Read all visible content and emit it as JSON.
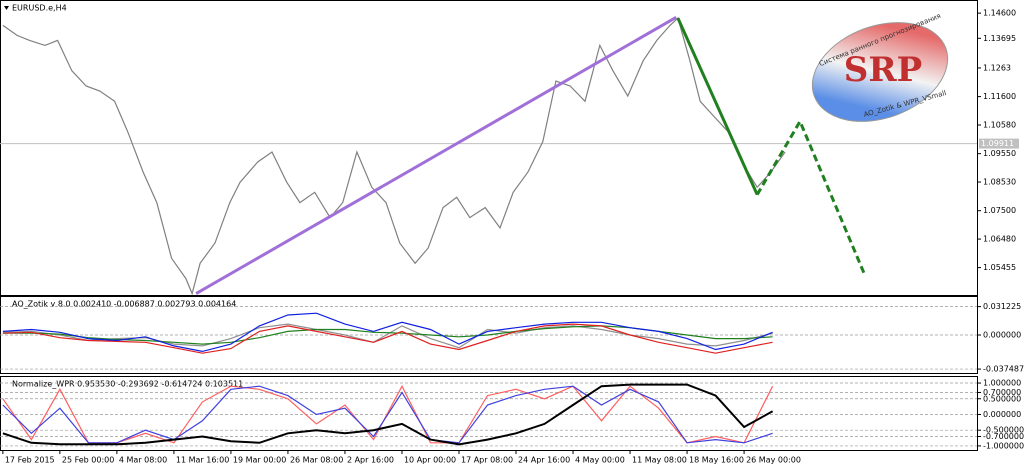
{
  "chart_data": [
    {
      "type": "line",
      "title": "EURUSD.e,H4",
      "xlim": [
        -0.05,
        17.05
      ],
      "ylim": [
        1.0447,
        1.15
      ],
      "yticks": [
        {
          "value": 1.146,
          "label": "1.14600"
        },
        1.13695,
        1.1263,
        {
          "value": 1.116,
          "label": "1.11600"
        },
        {
          "value": 1.1058,
          "label": "1.10580"
        },
        {
          "value": 1.0955,
          "label": "1.09550"
        },
        {
          "value": 1.0853,
          "label": "1.08530"
        },
        {
          "value": 1.075,
          "label": "1.07500"
        },
        {
          "value": 1.0648,
          "label": "1.06480"
        },
        1.05455
      ],
      "hline": 1.09911,
      "x": [
        0,
        0.25,
        0.47,
        0.74,
        0.96,
        1.21,
        1.46,
        1.7,
        1.96,
        2.19,
        2.46,
        2.7,
        2.96,
        3.21,
        3.32,
        3.46,
        3.72,
        3.98,
        4.16,
        4.47,
        4.72,
        4.98,
        5.21,
        5.47,
        5.74,
        5.96,
        6.21,
        6.47,
        6.72,
        6.96,
        7.23,
        7.46,
        7.72,
        7.96,
        8.19,
        8.46,
        8.72,
        8.95,
        9.21,
        9.47,
        9.7,
        9.95,
        10.21,
        10.47,
        10.7,
        10.96,
        11.23,
        11.47,
        11.7,
        11.84,
        12.05,
        12.23,
        12.47,
        12.72,
        12.96,
        13.23,
        13.47,
        13.72
      ],
      "series": [
        {
          "color": "#808080",
          "values": [
            1.1416,
            1.138,
            1.1362,
            1.1344,
            1.1362,
            1.1253,
            1.1198,
            1.118,
            1.1143,
            1.1034,
            1.0889,
            1.0779,
            1.0579,
            1.0506,
            1.0452,
            1.0561,
            1.0634,
            1.0779,
            1.0852,
            1.0925,
            1.0961,
            1.0852,
            1.0779,
            1.0816,
            1.0725,
            1.0779,
            1.0961,
            1.0834,
            1.0779,
            1.0634,
            1.0561,
            1.0616,
            1.0761,
            1.0798,
            1.0725,
            1.0761,
            1.0688,
            1.0816,
            1.0889,
            1.0998,
            1.1216,
            1.1198,
            1.1143,
            1.1344,
            1.1253,
            1.1162,
            1.1289,
            1.1362,
            1.1416,
            1.1442,
            1.1289,
            1.1143,
            1.1089,
            1.1034,
            1.0925,
            1.0834,
            1.0889,
            1.0961
          ]
        }
      ],
      "annotations": [
        {
          "color": "#a070d8",
          "x": [
            3.39,
            11.81
          ],
          "y": [
            1.0452,
            1.1445
          ]
        },
        {
          "color": "#208020",
          "x": [
            11.84,
            13.23
          ],
          "y": [
            1.1442,
            1.0808
          ]
        },
        {
          "color": "#208020",
          "dash": true,
          "x": [
            13.23,
            13.98,
            15.12
          ],
          "y": [
            1.0808,
            1.1071,
            1.0517
          ]
        }
      ]
    },
    {
      "type": "line",
      "title": "AO_Zotik v 8.0 0.002410 -0.006887 0.002793 0.004164",
      "xlim": [
        -0.05,
        17.05
      ],
      "ylim": [
        -0.0418,
        0.0407
      ],
      "grid": true,
      "yticks": [
        0.031225,
        {
          "value": 0,
          "label": "0.000000"
        },
        -0.037487
      ],
      "x": [
        0,
        0.5,
        1,
        1.5,
        2,
        2.5,
        3,
        3.5,
        4,
        4.5,
        5,
        5.5,
        6,
        6.5,
        7,
        7.5,
        8,
        8.5,
        9,
        9.5,
        10,
        10.5,
        11,
        11.5,
        12,
        12.5,
        13,
        13.5
      ],
      "series": [
        {
          "color": "#909090",
          "values": [
            0.003,
            0.004,
            0,
            -0.006,
            -0.004,
            -0.003,
            -0.01,
            -0.012,
            -0.004,
            0.008,
            0.012,
            0.006,
            0,
            -0.008,
            0.01,
            -0.004,
            -0.014,
            0.006,
            0.002,
            0.008,
            0.01,
            0.006,
            0,
            -0.004,
            -0.01,
            -0.012,
            -0.006,
            0.002
          ]
        },
        {
          "color": "#208020",
          "values": [
            0.002,
            0.002,
            0.001,
            -0.003,
            -0.005,
            -0.006,
            -0.008,
            -0.01,
            -0.008,
            -0.003,
            0.004,
            0.006,
            0.006,
            0.003,
            0.002,
            0,
            -0.002,
            0,
            0.004,
            0.007,
            0.009,
            0.01,
            0.008,
            0.004,
            0,
            -0.004,
            -0.004,
            -0.002
          ]
        },
        {
          "color": "#e02020",
          "values": [
            0.002,
            0.003,
            -0.003,
            -0.006,
            -0.007,
            -0.008,
            -0.014,
            -0.02,
            -0.015,
            0.004,
            0.01,
            0.004,
            -0.002,
            -0.008,
            0.004,
            -0.01,
            -0.016,
            -0.006,
            0.004,
            0.01,
            0.012,
            0.01,
            0,
            -0.008,
            -0.014,
            -0.02,
            -0.014,
            -0.008
          ]
        },
        {
          "color": "#1020e0",
          "values": [
            0.004,
            0.006,
            0.003,
            -0.004,
            -0.006,
            -0.002,
            -0.012,
            -0.018,
            -0.01,
            0.01,
            0.022,
            0.024,
            0.012,
            0.004,
            0.014,
            0.006,
            -0.01,
            0.004,
            0.008,
            0.012,
            0.014,
            0.014,
            0.008,
            0.004,
            -0.004,
            -0.016,
            -0.01,
            0.003
          ]
        }
      ]
    },
    {
      "type": "line",
      "title": "Normalize_WPR 0.953530 -0.293692 -0.614724 0.103511",
      "xlim": [
        -0.05,
        17.05
      ],
      "ylim": [
        -1.13,
        1.16
      ],
      "grid": true,
      "yticks": [
        {
          "value": 1,
          "label": "1.000000"
        },
        {
          "value": 0.7,
          "label": "0.700000"
        },
        {
          "value": 0.5,
          "label": "0.500000"
        },
        {
          "value": 0,
          "label": "0.000000"
        },
        {
          "value": -0.5,
          "label": "-0.500000"
        },
        {
          "value": -0.7,
          "label": "-0.700000"
        },
        {
          "value": -1,
          "label": "-1.000000"
        }
      ],
      "xticks": [
        {
          "value": 0,
          "label": "17 Feb 2015"
        },
        {
          "value": 1,
          "label": "25 Feb 00:00"
        },
        {
          "value": 2,
          "label": "4 Mar 08:00"
        },
        {
          "value": 3,
          "label": "11 Mar 16:00"
        },
        {
          "value": 4,
          "label": "19 Mar 00:00"
        },
        {
          "value": 5,
          "label": "26 Mar 08:00"
        },
        {
          "value": 6,
          "label": "2 Apr 16:00"
        },
        {
          "value": 7,
          "label": "10 Apr 00:00"
        },
        {
          "value": 8,
          "label": "17 Apr 08:00"
        },
        {
          "value": 9,
          "label": "24 Apr 16:00"
        },
        {
          "value": 10,
          "label": "4 May 00:00"
        },
        {
          "value": 11,
          "label": "11 May 08:00"
        },
        {
          "value": 12,
          "label": "18 May 16:00"
        },
        {
          "value": 13,
          "label": "26 May 00:00"
        }
      ],
      "x": [
        0,
        0.5,
        1,
        1.5,
        2,
        2.5,
        3,
        3.5,
        4,
        4.5,
        5,
        5.5,
        6,
        6.5,
        7,
        7.5,
        8,
        8.5,
        9,
        9.5,
        10,
        10.5,
        11,
        11.5,
        12,
        12.5,
        13,
        13.5
      ],
      "series": [
        {
          "color": "#ff6060",
          "values": [
            0.5,
            -0.8,
            0.8,
            -0.9,
            -0.9,
            -0.6,
            -0.9,
            0.4,
            0.9,
            0.8,
            0.5,
            -0.3,
            0.3,
            -0.8,
            0.9,
            -0.9,
            -0.9,
            0.6,
            0.8,
            0.5,
            0.9,
            -0.2,
            0.9,
            0.2,
            -0.9,
            -0.7,
            -0.9,
            0.9
          ]
        },
        {
          "color": "#4040e0",
          "values": [
            0.3,
            -0.6,
            0.2,
            -0.9,
            -0.9,
            -0.5,
            -0.8,
            -0.2,
            0.8,
            0.9,
            0.6,
            0,
            0.2,
            -0.7,
            0.7,
            -0.8,
            -0.9,
            0.3,
            0.6,
            0.8,
            0.9,
            0.3,
            0.8,
            0.4,
            -0.9,
            -0.8,
            -0.9,
            -0.6
          ]
        },
        {
          "color": "#000000",
          "width": 2,
          "values": [
            -0.6,
            -0.9,
            -0.95,
            -0.95,
            -0.95,
            -0.9,
            -0.8,
            -0.7,
            -0.85,
            -0.9,
            -0.6,
            -0.5,
            -0.6,
            -0.5,
            -0.3,
            -0.8,
            -0.95,
            -0.8,
            -0.6,
            -0.3,
            0.3,
            0.9,
            0.95,
            0.95,
            0.95,
            0.6,
            -0.4,
            0.1
          ]
        }
      ]
    }
  ],
  "logo": {
    "mark": "SRP",
    "tagline": "Система ранного прогнозирования",
    "credit": "AO_Zotik & WPR_VSmall"
  }
}
